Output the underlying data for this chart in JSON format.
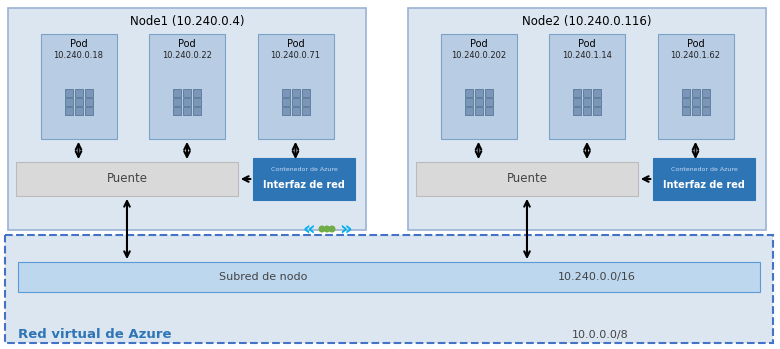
{
  "node1_label": "Node1 (10.240.0.4)",
  "node2_label": "Node2 (10.240.0.116)",
  "node1_pods": [
    {
      "label": "Pod\n10.240.0.18"
    },
    {
      "label": "Pod\n10.240.0.22"
    },
    {
      "label": "Pod\n10.240.0.71"
    }
  ],
  "node2_pods": [
    {
      "label": "Pod\n10.240.0.202"
    },
    {
      "label": "Pod\n10.240.1.14"
    },
    {
      "label": "Pod\n10.240.1.62"
    }
  ],
  "puente_label": "Puente",
  "contenedor_line1": "Contenedor de Azure",
  "contenedor_line2": "Interfaz de red",
  "subred_label": "Subred de nodo",
  "subred_ip": "10.240.0.0/16",
  "vnet_label": "Red virtual de Azure",
  "vnet_ip": "10.0.0.0/8",
  "node_bg": "#dce6f1",
  "node_border": "#9ab3d5",
  "pod_bg": "#b8cce4",
  "pod_border": "#7ba3c8",
  "bridge_bg": "#d9d9d9",
  "bridge_border": "#bbbbbb",
  "azure_btn_bg": "#2e75b6",
  "azure_btn_text": "#ffffff",
  "azure_btn_toptext": "#c6d9f1",
  "subred_bg": "#bdd7ee",
  "subred_border": "#5b9bd5",
  "vnet_bg": "#dce6f1",
  "vnet_border_dash": "#4472c4",
  "arrow_color": "#000000",
  "cni_arrow_color": "#00b0f0",
  "cni_dot_color": "#70ad47",
  "bg_color": "#ffffff"
}
